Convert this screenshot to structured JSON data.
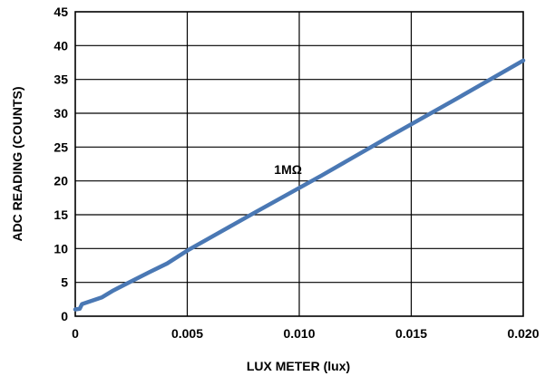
{
  "chart_data": {
    "type": "line",
    "title": "",
    "xlabel": "LUX METER (lux)",
    "ylabel": "ADC READING (COUNTS)",
    "xlim": [
      0,
      0.02
    ],
    "ylim": [
      0,
      45
    ],
    "x_ticks": [
      0,
      0.005,
      0.01,
      0.015,
      0.02
    ],
    "x_tick_labels": [
      "0",
      "0.005",
      "0.010",
      "0.015",
      "0.020"
    ],
    "y_ticks": [
      0,
      5,
      10,
      15,
      20,
      25,
      30,
      35,
      40,
      45
    ],
    "y_tick_labels": [
      "0",
      "5",
      "10",
      "15",
      "20",
      "25",
      "30",
      "35",
      "40",
      "45"
    ],
    "grid": true,
    "legend": "none",
    "line_color": "#4A78B4",
    "series": [
      {
        "x": [
          0,
          0.0002,
          0.0003,
          0.0012,
          0.0017,
          0.0024,
          0.0033,
          0.0041,
          0.005,
          0.008,
          0.011,
          0.014,
          0.017,
          0.02
        ],
        "y": [
          1,
          1.1,
          1.8,
          2.8,
          3.8,
          5,
          6.5,
          7.8,
          9.7,
          15.3,
          20.8,
          26.5,
          32.1,
          37.8
        ]
      }
    ],
    "annotations": [
      {
        "text": "1MΩ",
        "x": 0.0095,
        "y": 21
      }
    ]
  }
}
